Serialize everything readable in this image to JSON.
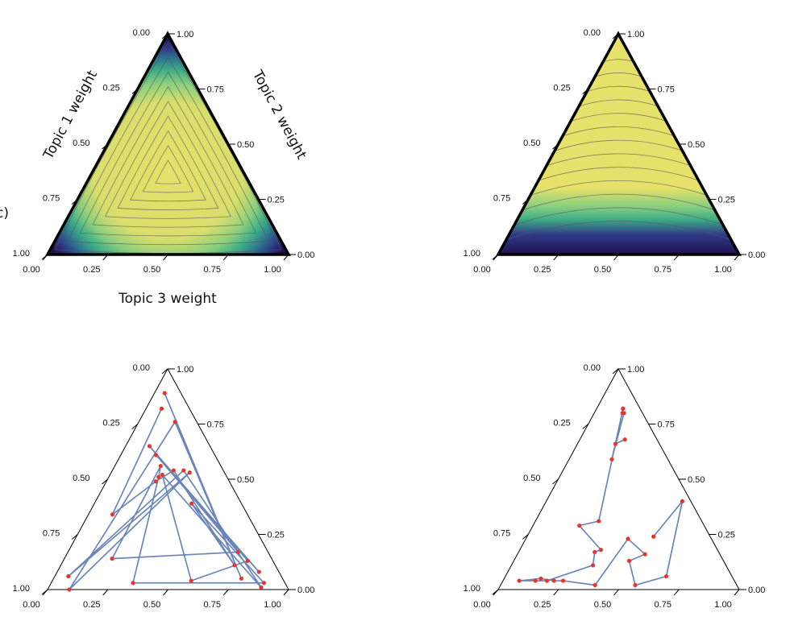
{
  "figure": {
    "panel_label_fragment": "c)",
    "colors": {
      "density_high": "#e6e16a",
      "density_mid": "#3fae86",
      "density_low": "#2f3a87",
      "density_min": "#20104e",
      "path": "#6a86b8",
      "point": "#e8352c",
      "contour": "#555555"
    }
  },
  "chart_data": [
    {
      "type": "heatmap",
      "panel": "top-left",
      "ternary": true,
      "axis_labels": {
        "left": "Topic 1 weight",
        "right": "Topic 2 weight",
        "bottom": "Topic 3 weight"
      },
      "left_ticks": [
        "0.00",
        "0.25",
        "0.50",
        "0.75",
        "1.00"
      ],
      "right_ticks": [
        "1.00",
        "0.75",
        "0.50",
        "0.25",
        "0.00"
      ],
      "bottom_ticks": [
        "0.00",
        "0.25",
        "0.50",
        "0.75",
        "1.00"
      ],
      "density": "high in interior, low near edges",
      "contours": true
    },
    {
      "type": "heatmap",
      "panel": "top-right",
      "ternary": true,
      "left_ticks": [
        "0.00",
        "0.25",
        "0.50",
        "0.75",
        "1.00"
      ],
      "right_ticks": [
        "1.00",
        "0.75",
        "0.50",
        "0.25",
        "0.00"
      ],
      "bottom_ticks": [
        "0.00",
        "0.25",
        "0.50",
        "0.75",
        "1.00"
      ],
      "density": "high everywhere except a low band along the bottom edge",
      "contours": true
    },
    {
      "type": "scatter",
      "panel": "bottom-left",
      "ternary": true,
      "connected": true,
      "left_ticks": [
        "0.00",
        "0.25",
        "0.50",
        "0.75",
        "1.00"
      ],
      "right_ticks": [
        "1.00",
        "0.75",
        "0.50",
        "0.25",
        "0.00"
      ],
      "bottom_ticks": [
        "0.00",
        "0.25",
        "0.50",
        "0.75",
        "1.00"
      ],
      "points": [
        [
          0.37,
          0.89
        ],
        [
          0.82,
          0.05
        ],
        [
          0.62,
          0.76
        ],
        [
          0.09,
          0.0
        ],
        [
          0.69,
          0.53
        ],
        [
          0.06,
          0.06
        ],
        [
          0.64,
          0.54
        ],
        [
          0.89,
          0.01
        ],
        [
          0.45,
          0.52
        ],
        [
          0.6,
          0.04
        ],
        [
          0.88,
          0.13
        ],
        [
          0.37,
          0.61
        ],
        [
          0.91,
          0.08
        ],
        [
          0.28,
          0.65
        ],
        [
          0.85,
          0.17
        ],
        [
          0.23,
          0.14
        ],
        [
          0.43,
          0.56
        ],
        [
          0.42,
          0.51
        ],
        [
          0.35,
          0.03
        ],
        [
          0.91,
          0.03
        ],
        [
          0.66,
          0.39
        ],
        [
          0.81,
          0.11
        ],
        [
          0.55,
          0.54
        ],
        [
          0.4,
          0.49
        ],
        [
          0.15,
          0.34
        ],
        [
          0.35,
          0.82
        ]
      ]
    },
    {
      "type": "scatter",
      "panel": "bottom-right",
      "ternary": true,
      "connected": true,
      "left_ticks": [
        "0.00",
        "0.25",
        "0.50",
        "0.75",
        "1.00"
      ],
      "right_ticks": [
        "1.00",
        "0.75",
        "0.50",
        "0.25",
        "0.00"
      ],
      "bottom_ticks": [
        "0.00",
        "0.25",
        "0.50",
        "0.75",
        "1.00"
      ],
      "points": [
        [
          0.58,
          0.68
        ],
        [
          0.46,
          0.66
        ],
        [
          0.43,
          0.59
        ],
        [
          0.61,
          0.8
        ],
        [
          0.58,
          0.8
        ],
        [
          0.6,
          0.82
        ],
        [
          0.6,
          0.82
        ],
        [
          0.38,
          0.31
        ],
        [
          0.27,
          0.29
        ],
        [
          0.41,
          0.18
        ],
        [
          0.38,
          0.17
        ],
        [
          0.38,
          0.11
        ],
        [
          0.19,
          0.04
        ],
        [
          0.14,
          0.04
        ],
        [
          0.07,
          0.04
        ],
        [
          0.16,
          0.05
        ],
        [
          0.22,
          0.04
        ],
        [
          0.26,
          0.04
        ],
        [
          0.4,
          0.02
        ],
        [
          0.55,
          0.23
        ],
        [
          0.63,
          0.16
        ],
        [
          0.55,
          0.13
        ],
        [
          0.57,
          0.02
        ],
        [
          0.71,
          0.06
        ],
        [
          0.94,
          0.4
        ],
        [
          0.69,
          0.24
        ]
      ]
    }
  ]
}
